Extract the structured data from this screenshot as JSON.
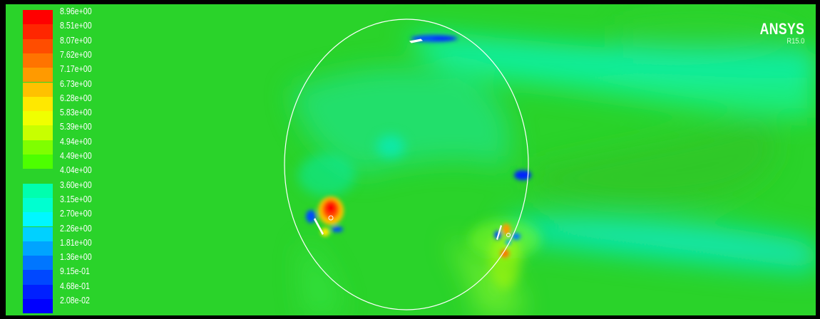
{
  "logo": {
    "brand": "ANSYS",
    "version": "R15.0"
  },
  "colormap": {
    "tick_labels": [
      "8.96e+00",
      "8.51e+00",
      "8.07e+00",
      "7.62e+00",
      "7.17e+00",
      "6.73e+00",
      "6.28e+00",
      "5.83e+00",
      "5.39e+00",
      "4.94e+00",
      "4.49e+00",
      "4.04e+00",
      "3.60e+00",
      "3.15e+00",
      "2.70e+00",
      "2.26e+00",
      "1.81e+00",
      "1.36e+00",
      "9.15e-01",
      "4.68e-01",
      "2.08e-02"
    ],
    "colors": [
      "#ff0000",
      "#ff2600",
      "#ff4d00",
      "#ff7400",
      "#ff9a00",
      "#ffc100",
      "#ffe800",
      "#f0ff00",
      "#c8ff00",
      "#7fff00",
      "#4dff00",
      "#2ad32a",
      "#00ffae",
      "#00ffd0",
      "#00f7ff",
      "#00d1ff",
      "#00a4ff",
      "#0076ff",
      "#0048ff",
      "#0020ff",
      "#0000ff"
    ]
  },
  "colors": {
    "background": "#2ad32a",
    "frame": "#000000",
    "rotor_circle": "#ffffff"
  }
}
